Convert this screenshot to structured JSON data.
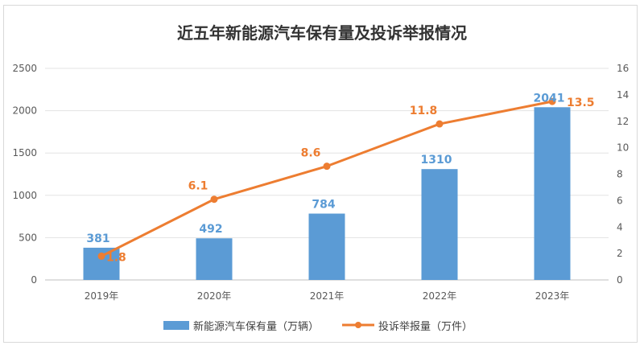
{
  "chart_data": {
    "type": "bar",
    "title": "近五年新能源汽车保有量及投诉举报情况",
    "categories": [
      "2019年",
      "2020年",
      "2021年",
      "2022年",
      "2023年"
    ],
    "series": [
      {
        "name": "新能源汽车保有量（万辆）",
        "type": "bar",
        "axis": "left",
        "values": [
          381,
          492,
          784,
          1310,
          2041
        ],
        "color": "#5b9bd5"
      },
      {
        "name": "投诉举报量（万件）",
        "type": "line",
        "axis": "right",
        "values": [
          1.8,
          6.1,
          8.6,
          11.8,
          13.5
        ],
        "color": "#ed7d31"
      }
    ],
    "y_left": {
      "min": 0,
      "max": 2500,
      "ticks": [
        0,
        500,
        1000,
        1500,
        2000,
        2500
      ]
    },
    "y_right": {
      "min": 0,
      "max": 16,
      "ticks": [
        0,
        2,
        4,
        6,
        8,
        10,
        12,
        14,
        16
      ]
    },
    "grid": true,
    "legend": "bottom"
  }
}
